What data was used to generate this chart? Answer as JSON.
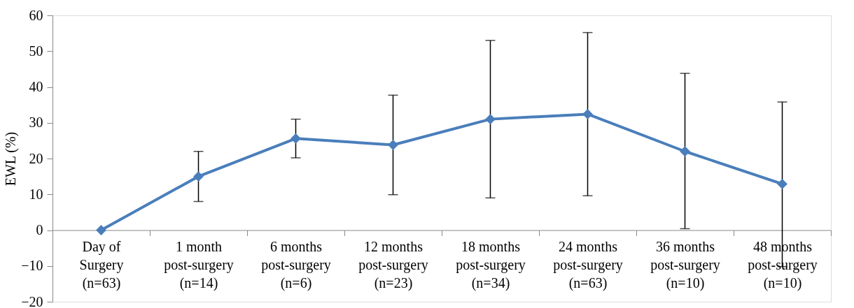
{
  "chart_data": {
    "type": "line",
    "ylabel": "EWL (%)",
    "categories": [
      "Day of\nSurgery\n(n=63)",
      "1 month\npost-surgery\n(n=14)",
      "6 months\npost-surgery\n(n=6)",
      "12 months\npost-surgery\n(n=23)",
      "18 months\npost-surgery\n(n=34)",
      "24 months\npost-surgery\n(n=63)",
      "36 months\npost-surgery\n(n=10)",
      "48 months\npost-surgery\n(n=10)"
    ],
    "series": [
      {
        "color": "#4a7ebb",
        "values": [
          0,
          15,
          25.6,
          23.8,
          31,
          32.4,
          22,
          12.9
        ],
        "errors": [
          null,
          [
            8,
            22
          ],
          [
            20.2,
            31
          ],
          [
            9.9,
            37.7
          ],
          [
            9,
            53
          ],
          [
            9.6,
            55.2
          ],
          [
            0.4,
            43.8
          ],
          [
            -10.2,
            35.8
          ]
        ]
      }
    ],
    "ylim": [
      -20,
      60
    ],
    "yticks": [
      -20,
      -10,
      0,
      10,
      20,
      30,
      40,
      50,
      60
    ],
    "grid": false,
    "marker": "diamond",
    "line_style": "solid"
  }
}
